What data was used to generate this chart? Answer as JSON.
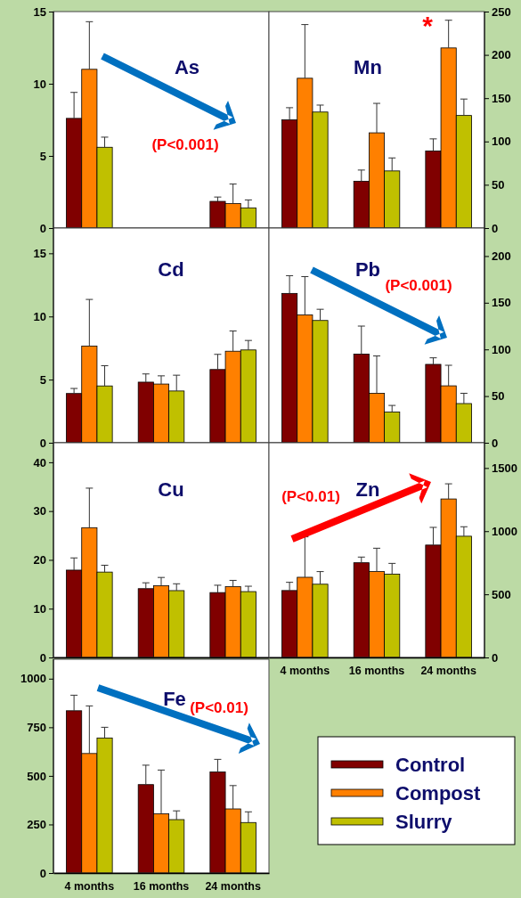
{
  "chart_data": [
    {
      "type": "bar",
      "title": "As",
      "categories": [
        null,
        null,
        null
      ],
      "ylim": [
        0,
        15
      ],
      "yticks": [
        0,
        5,
        10,
        15
      ],
      "tick_labels": "y",
      "annotations": [
        "(P<0.001)"
      ],
      "series": [
        {
          "color": "#800000",
          "values": [
            7.6,
            null,
            1.85
          ],
          "errors": [
            [
              7.6,
              9.4
            ],
            null,
            [
              1.85,
              2.15
            ]
          ]
        },
        {
          "color": "#ff8000",
          "values": [
            11.0,
            null,
            1.7
          ],
          "errors": [
            [
              11.0,
              14.3
            ],
            null,
            [
              1.7,
              3.05
            ]
          ]
        },
        {
          "color": "#c0c000",
          "values": [
            5.6,
            null,
            1.4
          ],
          "errors": [
            [
              5.6,
              6.3
            ],
            null,
            [
              1.4,
              1.95
            ]
          ]
        }
      ]
    },
    {
      "type": "bar",
      "title": "Mn",
      "categories": [
        null,
        null,
        null
      ],
      "ylim": [
        0,
        250
      ],
      "yticks": [
        0,
        50,
        100,
        150,
        200,
        250
      ],
      "tick_labels": "y",
      "annotations": [
        "*"
      ],
      "series": [
        {
          "color": "#800000",
          "values": [
            125,
            54,
            89
          ],
          "errors": [
            [
              125,
              139
            ],
            [
              54,
              67
            ],
            [
              89,
              103
            ]
          ]
        },
        {
          "color": "#ff8000",
          "values": [
            173,
            110,
            208
          ],
          "errors": [
            [
              173,
              235
            ],
            [
              110,
              144
            ],
            [
              208,
              240
            ]
          ]
        },
        {
          "color": "#c0c000",
          "values": [
            134,
            66,
            130
          ],
          "errors": [
            [
              134,
              142
            ],
            [
              66,
              81
            ],
            [
              130,
              149
            ]
          ]
        }
      ]
    },
    {
      "type": "bar",
      "title": "Cd",
      "categories": [
        null,
        null,
        null
      ],
      "ylim": [
        0,
        17
      ],
      "yticks": [
        0,
        5,
        10,
        15
      ],
      "tick_labels": "y",
      "series": [
        {
          "color": "#800000",
          "values": [
            3.9,
            4.8,
            5.8
          ],
          "errors": [
            [
              3.9,
              4.3
            ],
            [
              4.8,
              5.45
            ],
            [
              5.8,
              7.0
            ]
          ]
        },
        {
          "color": "#ff8000",
          "values": [
            7.65,
            4.65,
            7.25
          ],
          "errors": [
            [
              7.65,
              11.35
            ],
            [
              4.65,
              5.3
            ],
            [
              7.25,
              8.85
            ]
          ]
        },
        {
          "color": "#c0c000",
          "values": [
            4.5,
            4.1,
            7.35
          ],
          "errors": [
            [
              4.5,
              6.1
            ],
            [
              4.1,
              5.35
            ],
            [
              7.35,
              8.1
            ]
          ]
        }
      ]
    },
    {
      "type": "bar",
      "title": "Pb",
      "categories": [
        null,
        null,
        null
      ],
      "ylim": [
        0,
        230
      ],
      "yticks": [
        0,
        50,
        100,
        150,
        200
      ],
      "tick_labels": "y",
      "annotations": [
        "(P<0.001)"
      ],
      "series": [
        {
          "color": "#800000",
          "values": [
            160,
            95,
            84
          ],
          "errors": [
            [
              160,
              179
            ],
            [
              95,
              125
            ],
            [
              84,
              91
            ]
          ]
        },
        {
          "color": "#ff8000",
          "values": [
            137,
            53,
            61
          ],
          "errors": [
            [
              137,
              178
            ],
            [
              53,
              93
            ],
            [
              61,
              83
            ]
          ]
        },
        {
          "color": "#c0c000",
          "values": [
            131,
            33,
            42
          ],
          "errors": [
            [
              131,
              143
            ],
            [
              33,
              40
            ],
            [
              42,
              53
            ]
          ]
        }
      ]
    },
    {
      "type": "bar",
      "title": "Cu",
      "categories": [
        null,
        null,
        null
      ],
      "ylim": [
        0,
        44
      ],
      "yticks": [
        0,
        10,
        20,
        30,
        40
      ],
      "tick_labels": "y",
      "series": [
        {
          "color": "#800000",
          "values": [
            17.9,
            14.1,
            13.3
          ],
          "errors": [
            [
              17.9,
              20.4
            ],
            [
              14.1,
              15.3
            ],
            [
              13.3,
              14.8
            ]
          ]
        },
        {
          "color": "#ff8000",
          "values": [
            26.6,
            14.7,
            14.5
          ],
          "errors": [
            [
              26.6,
              34.7
            ],
            [
              14.7,
              16.4
            ],
            [
              14.5,
              15.8
            ]
          ]
        },
        {
          "color": "#c0c000",
          "values": [
            17.5,
            13.7,
            13.5
          ],
          "errors": [
            [
              17.5,
              18.9
            ],
            [
              13.7,
              15.1
            ],
            [
              13.5,
              14.6
            ]
          ]
        }
      ]
    },
    {
      "type": "bar",
      "title": "Zn",
      "categories": [
        "4 months",
        "16 months",
        "24 months"
      ],
      "ylim": [
        0,
        1700
      ],
      "yticks": [
        0,
        500,
        1000,
        1500
      ],
      "annotations": [
        "(P<0.01)"
      ],
      "series": [
        {
          "color": "#800000",
          "values": [
            530,
            750,
            890
          ],
          "errors": [
            [
              530,
              595
            ],
            [
              750,
              795
            ],
            [
              890,
              1030
            ]
          ]
        },
        {
          "color": "#ff8000",
          "values": [
            635,
            680,
            1255
          ],
          "errors": [
            [
              635,
              955
            ],
            [
              680,
              865
            ],
            [
              1255,
              1375
            ]
          ]
        },
        {
          "color": "#c0c000",
          "values": [
            580,
            660,
            960
          ],
          "errors": [
            [
              580,
              680
            ],
            [
              660,
              745
            ],
            [
              960,
              1035
            ]
          ]
        }
      ]
    },
    {
      "type": "bar",
      "title": "Fe",
      "categories": [
        "4 months",
        "16 months",
        "24 months"
      ],
      "ylim": [
        0,
        1100
      ],
      "yticks": [
        0,
        250,
        500,
        750,
        1000
      ],
      "annotations": [
        "(P<0.01)"
      ],
      "legend": "bottom right",
      "series": [
        {
          "name": "Control",
          "color": "#800000",
          "values": [
            835,
            455,
            520
          ],
          "errors": [
            [
              835,
              915
            ],
            [
              455,
              555
            ],
            [
              520,
              585
            ]
          ]
        },
        {
          "name": "Compost",
          "color": "#ff8000",
          "values": [
            615,
            305,
            330
          ],
          "errors": [
            [
              615,
              860
            ],
            [
              305,
              530
            ],
            [
              330,
              450
            ]
          ]
        },
        {
          "name": "Slurry",
          "color": "#c0c000",
          "values": [
            695,
            275,
            260
          ],
          "errors": [
            [
              695,
              750
            ],
            [
              275,
              320
            ],
            [
              260,
              315
            ]
          ]
        }
      ]
    }
  ]
}
